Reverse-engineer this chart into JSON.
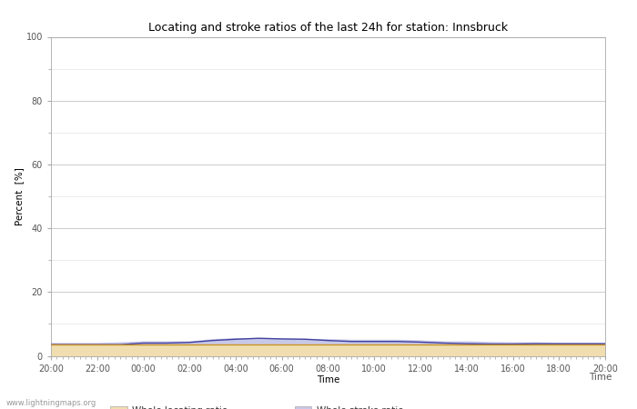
{
  "title": "Locating and stroke ratios of the last 24h for station: Innsbruck",
  "xlabel": "Time",
  "ylabel": "Percent  [%]",
  "watermark": "www.lightningmaps.org",
  "xlim": [
    0,
    24
  ],
  "ylim": [
    0,
    100
  ],
  "yticks": [
    0,
    20,
    40,
    60,
    80,
    100
  ],
  "yticks_minor": [
    10,
    30,
    50,
    70,
    90
  ],
  "xtick_labels": [
    "20:00",
    "22:00",
    "00:00",
    "02:00",
    "04:00",
    "06:00",
    "08:00",
    "10:00",
    "12:00",
    "14:00",
    "16:00",
    "18:00",
    "20:00"
  ],
  "background_color": "#ffffff",
  "plot_bg_color": "#ffffff",
  "whole_locating_color": "#f0deb0",
  "whole_stroke_color": "#c8c8e8",
  "locating_line_color": "#c8922a",
  "stroke_line_color": "#4040a0",
  "whole_locating_values": [
    3.5,
    3.5,
    3.5,
    3.5,
    3.5,
    3.5,
    3.5,
    3.5,
    3.5,
    3.5,
    3.5,
    3.5,
    3.5,
    3.5,
    3.5,
    3.5,
    3.5,
    3.5,
    3.5,
    3.5,
    3.5,
    3.5,
    3.5,
    3.5,
    3.5
  ],
  "whole_stroke_values": [
    4.0,
    4.0,
    4.0,
    4.2,
    4.5,
    4.5,
    4.5,
    5.2,
    5.5,
    5.5,
    5.3,
    5.3,
    5.2,
    5.0,
    5.0,
    5.0,
    4.8,
    4.5,
    4.5,
    4.3,
    4.2,
    4.2,
    4.0,
    4.0,
    4.0
  ],
  "locating_line_values": [
    3.5,
    3.5,
    3.5,
    3.5,
    3.5,
    3.5,
    3.5,
    3.5,
    3.5,
    3.5,
    3.5,
    3.5,
    3.5,
    3.5,
    3.5,
    3.5,
    3.5,
    3.5,
    3.5,
    3.5,
    3.5,
    3.5,
    3.5,
    3.5,
    3.5
  ],
  "stroke_line_values": [
    3.5,
    3.5,
    3.5,
    3.5,
    4.0,
    4.0,
    4.2,
    4.8,
    5.2,
    5.5,
    5.3,
    5.2,
    4.8,
    4.5,
    4.5,
    4.5,
    4.3,
    4.0,
    3.8,
    3.7,
    3.7,
    3.8,
    3.8,
    3.8,
    3.8
  ],
  "title_fontsize": 9,
  "axis_fontsize": 7.5,
  "tick_fontsize": 7,
  "legend_fontsize": 7.5
}
